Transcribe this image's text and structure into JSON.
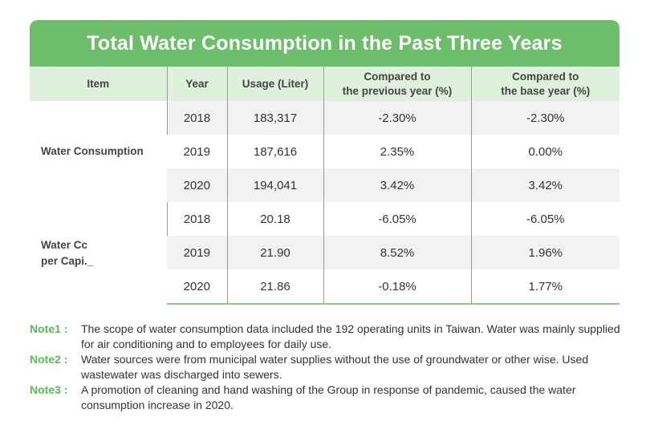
{
  "title": "Total Water Consumption in the Past Three Years",
  "headers": {
    "item": "Item",
    "year": "Year",
    "usage": "Usage (Liter)",
    "prev_line1": "Compared to",
    "prev_line2": "the previous year (%)",
    "base_line1": "Compared to",
    "base_line2": "the base year (%)"
  },
  "groups": [
    {
      "label": "Water Consumption",
      "rows": [
        {
          "year": "2018",
          "usage": "183,317",
          "prev": "-2.30%",
          "base": "-2.30%"
        },
        {
          "year": "2019",
          "usage": "187,616",
          "prev": "2.35%",
          "base": "0.00%"
        },
        {
          "year": "2020",
          "usage": "194,041",
          "prev": "3.42%",
          "base": "3.42%"
        }
      ]
    },
    {
      "label_line1": "Water Cc",
      "label_line2": "per Capi._",
      "rows": [
        {
          "year": "2018",
          "usage": "20.18",
          "prev": "-6.05%",
          "base": "-6.05%"
        },
        {
          "year": "2019",
          "usage": "21.90",
          "prev": "8.52%",
          "base": "1.96%"
        },
        {
          "year": "2020",
          "usage": "21.86",
          "prev": "-0.18%",
          "base": "1.77%"
        }
      ]
    }
  ],
  "notes": [
    {
      "label": "Note1 :",
      "text": "The scope of water consumption data included the 192 operating units in Taiwan. Water was mainly supplied for air conditioning and to employees for daily use."
    },
    {
      "label": "Note2 :",
      "text": "Water sources were from municipal water supplies without the use of groundwater or other wise. Used wastewater was discharged into sewers."
    },
    {
      "label": "Note3 :",
      "text": "A promotion of cleaning and hand washing of the Group in response of pandemic, caused the water consumption increase in 2020."
    }
  ],
  "colors": {
    "accent": "#6dbd6b",
    "header_bg": "#dff0dc",
    "note_label": "#5cb85a",
    "stripe": "#f2f2f2"
  }
}
